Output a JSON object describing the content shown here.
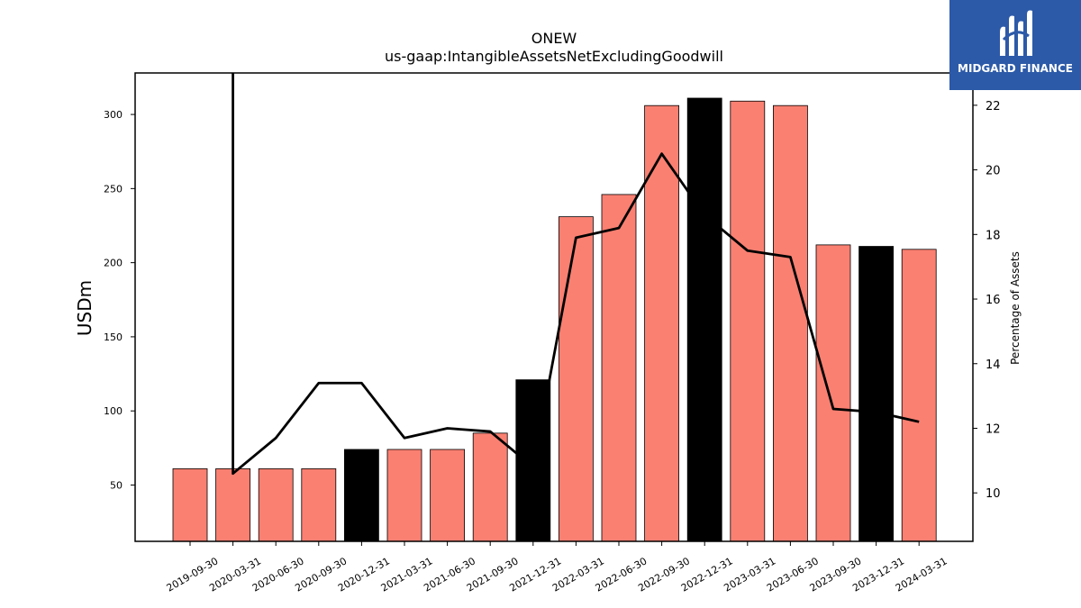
{
  "logo": {
    "text": "MIDGARD FINANCE",
    "bg_color": "#2c5aa8",
    "icon": "midgard-m-logo-icon"
  },
  "chart_data": {
    "type": "bar",
    "title": "ONEW",
    "subtitle": "us-gaap:IntangibleAssetsNetExcludingGoodwill",
    "ylabel": "USDm",
    "y2label": "Percentage of Assets",
    "ylim": [
      12,
      328
    ],
    "y2lim": [
      8.5,
      23.0
    ],
    "yticks": [
      50,
      100,
      150,
      200,
      250,
      300
    ],
    "y2ticks": [
      10,
      12,
      14,
      16,
      18,
      20,
      22
    ],
    "categories": [
      "2019-09-30",
      "2020-03-31",
      "2020-06-30",
      "2020-09-30",
      "2020-12-31",
      "2021-03-31",
      "2021-06-30",
      "2021-09-30",
      "2021-12-31",
      "2022-03-31",
      "2022-06-30",
      "2022-09-30",
      "2022-12-31",
      "2023-03-31",
      "2023-06-30",
      "2023-09-30",
      "2023-12-31",
      "2024-03-31"
    ],
    "series": [
      {
        "type": "bar",
        "axis": "left",
        "values": [
          61,
          61,
          61,
          61,
          74,
          74,
          74,
          85,
          121,
          231,
          246,
          306,
          311,
          309,
          306,
          212,
          211,
          209
        ],
        "colors": [
          "#fa8072",
          "#fa8072",
          "#fa8072",
          "#fa8072",
          "#000000",
          "#fa8072",
          "#fa8072",
          "#fa8072",
          "#000000",
          "#fa8072",
          "#fa8072",
          "#fa8072",
          "#000000",
          "#fa8072",
          "#fa8072",
          "#fa8072",
          "#000000",
          "#fa8072"
        ]
      },
      {
        "type": "line",
        "axis": "right",
        "color": "#000000",
        "values": [
          null,
          10.6,
          11.7,
          13.4,
          13.4,
          11.7,
          12.0,
          11.9,
          10.8,
          17.9,
          18.2,
          20.5,
          18.6,
          17.5,
          17.3,
          12.6,
          12.5,
          12.2
        ],
        "note_spike_from_top_at": "2020-03-31"
      }
    ],
    "grid": false
  }
}
